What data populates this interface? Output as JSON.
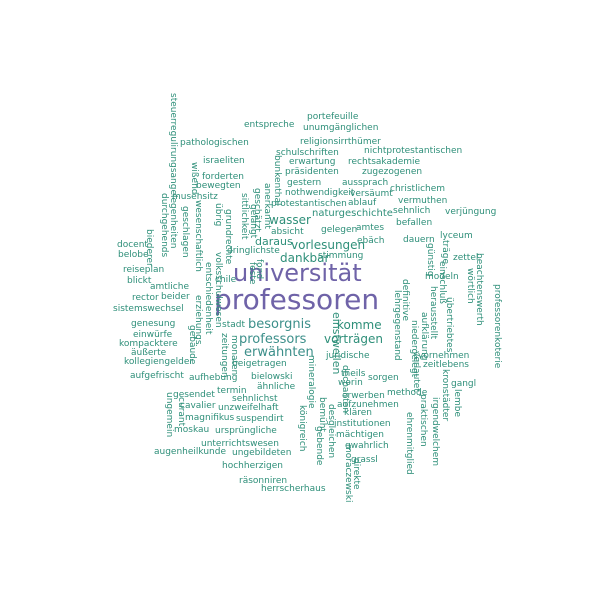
{
  "word_cloud": {
    "primary_color": "#6f63a8",
    "secondary_color": "#2e8f79",
    "words": [
      {
        "text": "professoren",
        "weight": 2.0
      },
      {
        "text": "universität",
        "weight": 1.7
      },
      {
        "text": "besorgnis",
        "weight": 1.1
      },
      {
        "text": "professors",
        "weight": 1.1
      },
      {
        "text": "erwähnten",
        "weight": 1.1
      },
      {
        "text": "vorlesungen",
        "weight": 1.05
      },
      {
        "text": "dankbar",
        "weight": 1.0
      },
      {
        "text": "wasser",
        "weight": 1.0
      },
      {
        "text": "vorträgen",
        "weight": 1.0
      },
      {
        "text": "komme",
        "weight": 1.0
      },
      {
        "text": "daraus",
        "weight": 1.0
      },
      {
        "text": "portefeuille",
        "weight": 0.8
      },
      {
        "text": "unumgänglichen",
        "weight": 0.8
      },
      {
        "text": "entspreche",
        "weight": 0.8
      },
      {
        "text": "religionsirrthümer",
        "weight": 0.8
      },
      {
        "text": "pathologischen",
        "weight": 0.8
      },
      {
        "text": "schulschriften",
        "weight": 0.8
      },
      {
        "text": "nichtprotestantischen",
        "weight": 0.8
      },
      {
        "text": "israeliten",
        "weight": 0.8
      },
      {
        "text": "erwartung",
        "weight": 0.8
      },
      {
        "text": "rechtsakademie",
        "weight": 0.8
      },
      {
        "text": "präsidenten",
        "weight": 0.8
      },
      {
        "text": "zugezogenen",
        "weight": 0.8
      },
      {
        "text": "forderten",
        "weight": 0.8
      },
      {
        "text": "gestern",
        "weight": 0.8
      },
      {
        "text": "aussprach",
        "weight": 0.8
      },
      {
        "text": "christlichem",
        "weight": 0.8
      },
      {
        "text": "bewegten",
        "weight": 0.8
      },
      {
        "text": "nothwendigkeit",
        "weight": 0.8
      },
      {
        "text": "versäumt",
        "weight": 0.8
      },
      {
        "text": "vermuthen",
        "weight": 0.8
      },
      {
        "text": "musensitz",
        "weight": 0.8
      },
      {
        "text": "protestantischen",
        "weight": 0.8
      },
      {
        "text": "ablauf",
        "weight": 0.8
      },
      {
        "text": "sehnlich",
        "weight": 0.8
      },
      {
        "text": "verjüngung",
        "weight": 0.8
      },
      {
        "text": "naturgeschichte",
        "weight": 0.8
      },
      {
        "text": "amtes",
        "weight": 0.8
      },
      {
        "text": "gelegen",
        "weight": 0.8
      },
      {
        "text": "absicht",
        "weight": 0.8
      },
      {
        "text": "ebäch",
        "weight": 0.8
      },
      {
        "text": "dauern",
        "weight": 0.8
      },
      {
        "text": "lyceum",
        "weight": 0.8
      },
      {
        "text": "stimmung",
        "weight": 0.8
      },
      {
        "text": "befallen",
        "weight": 0.8
      },
      {
        "text": "docent",
        "weight": 0.8
      },
      {
        "text": "belobe",
        "weight": 0.8
      },
      {
        "text": "dringlichste",
        "weight": 0.8
      },
      {
        "text": "zettel",
        "weight": 0.8
      },
      {
        "text": "chile",
        "weight": 0.8
      },
      {
        "text": "modeln",
        "weight": 0.8
      },
      {
        "text": "reiseplan",
        "weight": 0.8
      },
      {
        "text": "blickt",
        "weight": 0.8
      },
      {
        "text": "amtliche",
        "weight": 0.8
      },
      {
        "text": "beider",
        "weight": 0.8
      },
      {
        "text": "rector",
        "weight": 0.8
      },
      {
        "text": "sistemswechsel",
        "weight": 0.8
      },
      {
        "text": "stadt",
        "weight": 0.8
      },
      {
        "text": "genesung",
        "weight": 0.8
      },
      {
        "text": "einwürfe",
        "weight": 0.8
      },
      {
        "text": "kompacktere",
        "weight": 0.8
      },
      {
        "text": "äußerte",
        "weight": 0.8
      },
      {
        "text": "kollegiengelder",
        "weight": 0.8
      },
      {
        "text": "vornehmen",
        "weight": 0.8
      },
      {
        "text": "zeitlebens",
        "weight": 0.8
      },
      {
        "text": "juridische",
        "weight": 0.8
      },
      {
        "text": "beigetragen",
        "weight": 0.8
      },
      {
        "text": "theils",
        "weight": 0.8
      },
      {
        "text": "worin",
        "weight": 0.8
      },
      {
        "text": "sorgen",
        "weight": 0.8
      },
      {
        "text": "aufgefrischt",
        "weight": 0.8
      },
      {
        "text": "aufhebung",
        "weight": 0.8
      },
      {
        "text": "bielowski",
        "weight": 0.8
      },
      {
        "text": "ähnliche",
        "weight": 0.8
      },
      {
        "text": "methode",
        "weight": 0.8
      },
      {
        "text": "gangl",
        "weight": 0.8
      },
      {
        "text": "gesendet",
        "weight": 0.8
      },
      {
        "text": "termin",
        "weight": 0.8
      },
      {
        "text": "erwerben",
        "weight": 0.8
      },
      {
        "text": "sehnlichst",
        "weight": 0.8
      },
      {
        "text": "aufzunehmen",
        "weight": 0.8
      },
      {
        "text": "cavalier",
        "weight": 0.8
      },
      {
        "text": "unzweifelhaft",
        "weight": 0.8
      },
      {
        "text": "klären",
        "weight": 0.8
      },
      {
        "text": "magnifikus",
        "weight": 0.8
      },
      {
        "text": "suspendirt",
        "weight": 0.8
      },
      {
        "text": "institutionen",
        "weight": 0.8
      },
      {
        "text": "moskau",
        "weight": 0.8
      },
      {
        "text": "ursprüngliche",
        "weight": 0.8
      },
      {
        "text": "mächtigen",
        "weight": 0.8
      },
      {
        "text": "unterrichtswesen",
        "weight": 0.8
      },
      {
        "text": "qwahrlich",
        "weight": 0.8
      },
      {
        "text": "augenheilkunde",
        "weight": 0.8
      },
      {
        "text": "ungebildeten",
        "weight": 0.8
      },
      {
        "text": "grassl",
        "weight": 0.8
      },
      {
        "text": "hochherzigen",
        "weight": 0.8
      },
      {
        "text": "räsonniren",
        "weight": 0.8
      },
      {
        "text": "herrscherhaus",
        "weight": 0.8
      },
      {
        "text": "durchgehends",
        "weight": 0.8
      },
      {
        "text": "steuerregulirungsangelegenheiten",
        "weight": 0.8
      },
      {
        "text": "biederer",
        "weight": 0.8
      },
      {
        "text": "wißend",
        "weight": 0.8
      },
      {
        "text": "geschlagen",
        "weight": 0.8
      },
      {
        "text": "wesenschaftlich",
        "weight": 0.8
      },
      {
        "text": "entschiedenheit",
        "weight": 0.8
      },
      {
        "text": "volksschulwesen",
        "weight": 0.8
      },
      {
        "text": "erziehungs",
        "weight": 0.8
      },
      {
        "text": "gebäude",
        "weight": 0.8
      },
      {
        "text": "zeitungen",
        "weight": 0.8
      },
      {
        "text": "monaten",
        "weight": 0.8
      },
      {
        "text": "ungemein",
        "weight": 0.8
      },
      {
        "text": "curant",
        "weight": 0.8
      },
      {
        "text": "sittlichkeit",
        "weight": 0.8
      },
      {
        "text": "geschätzt",
        "weight": 0.8
      },
      {
        "text": "anerkannt",
        "weight": 0.8
      },
      {
        "text": "bunkenthal",
        "weight": 0.8
      },
      {
        "text": "grundrechte",
        "weight": 0.8
      },
      {
        "text": "gelangt",
        "weight": 0.8
      },
      {
        "text": "übrig",
        "weight": 0.8
      },
      {
        "text": "feste",
        "weight": 0.8
      },
      {
        "text": "fond",
        "weight": 0.8
      },
      {
        "text": "einstweilen",
        "weight": 0.9
      },
      {
        "text": "mineralogie",
        "weight": 0.8
      },
      {
        "text": "königreich",
        "weight": 0.8
      },
      {
        "text": "gebende",
        "weight": 0.8
      },
      {
        "text": "bemüht",
        "weight": 0.8
      },
      {
        "text": "desgleichen",
        "weight": 0.8
      },
      {
        "text": "dechanten",
        "weight": 0.8
      },
      {
        "text": "moraczewski",
        "weight": 0.8
      },
      {
        "text": "direkte",
        "weight": 0.8
      },
      {
        "text": "lehrgegenstand",
        "weight": 0.8
      },
      {
        "text": "niedergelegt",
        "weight": 0.8
      },
      {
        "text": "definitive",
        "weight": 0.8
      },
      {
        "text": "verlautet",
        "weight": 0.8
      },
      {
        "text": "aufklärung",
        "weight": 0.8
      },
      {
        "text": "ehrenmitglied",
        "weight": 0.8
      },
      {
        "text": "praktischen",
        "weight": 0.8
      },
      {
        "text": "irgendwelchem",
        "weight": 0.8
      },
      {
        "text": "herausstellt",
        "weight": 0.8
      },
      {
        "text": "günstig",
        "weight": 0.8
      },
      {
        "text": "übertriebtes",
        "weight": 0.8
      },
      {
        "text": "einschluß",
        "weight": 0.8
      },
      {
        "text": "träge",
        "weight": 0.8
      },
      {
        "text": "wörtlich",
        "weight": 0.8
      },
      {
        "text": "beachtenswerth",
        "weight": 0.8
      },
      {
        "text": "professorenkoterie",
        "weight": 0.8
      },
      {
        "text": "kronstädter",
        "weight": 0.8
      },
      {
        "text": "lembe",
        "weight": 0.8
      }
    ]
  }
}
